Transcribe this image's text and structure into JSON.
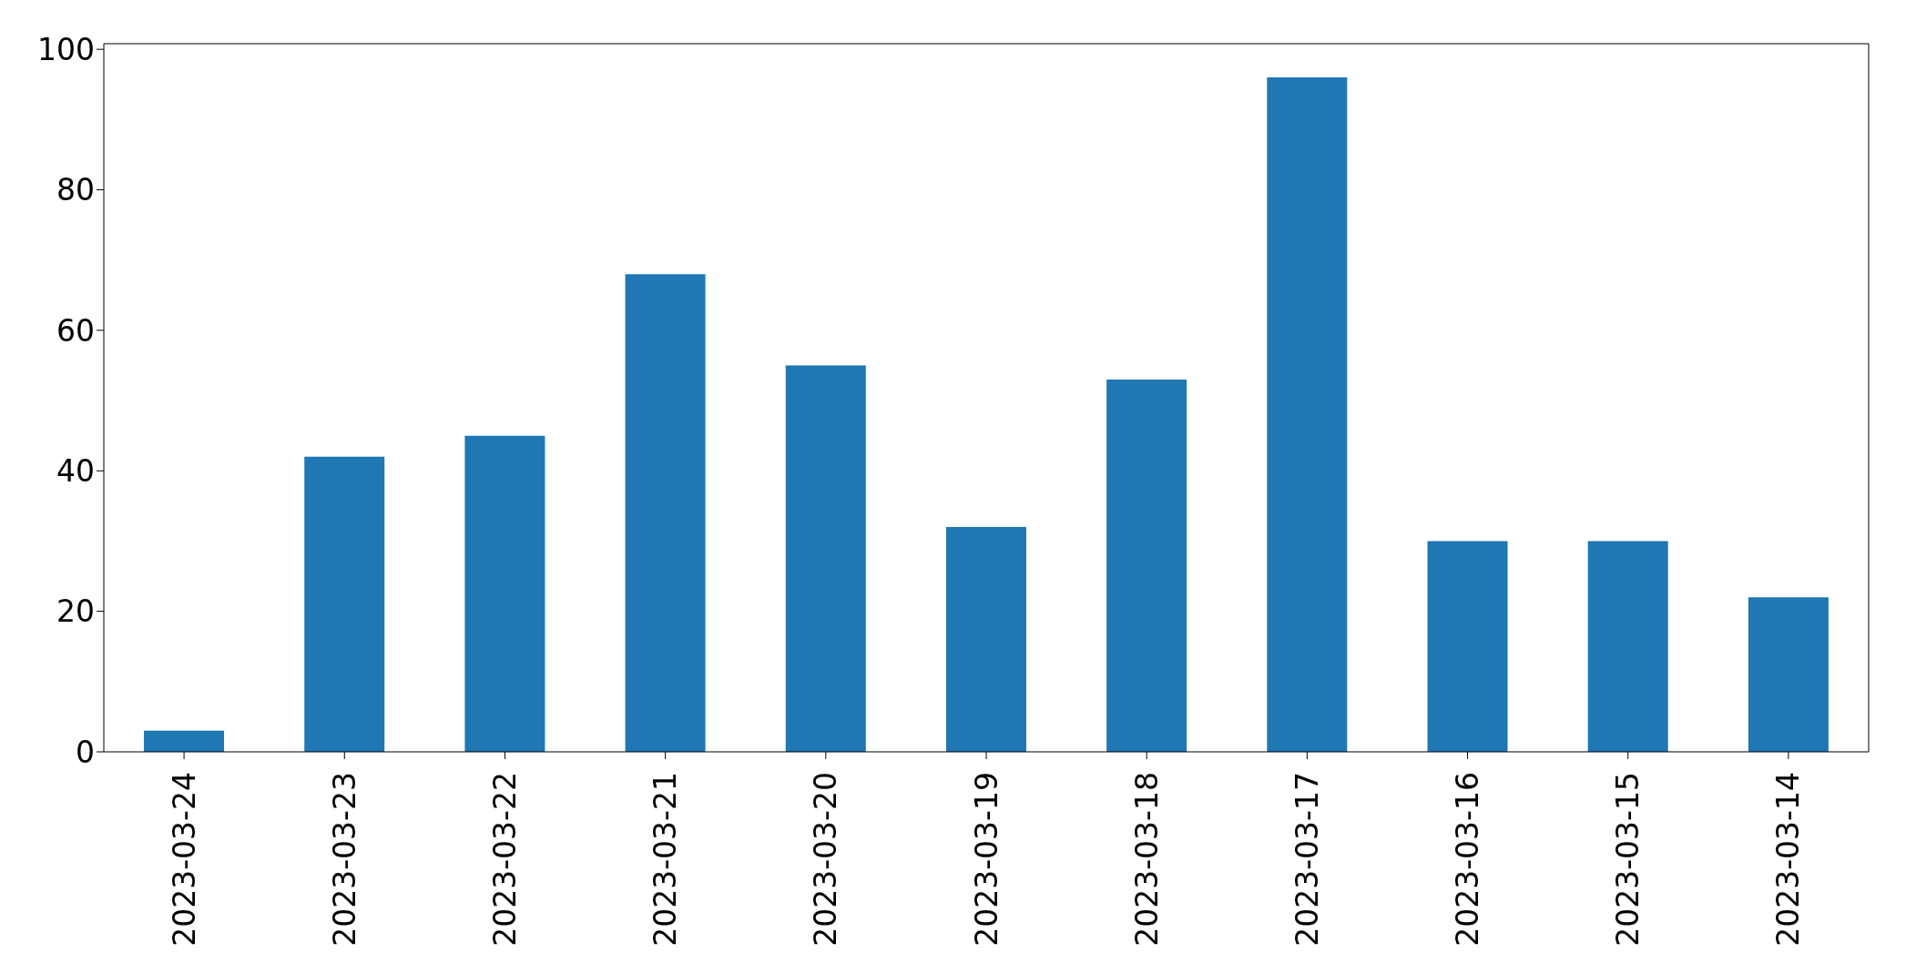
{
  "chart_data": {
    "type": "bar",
    "categories": [
      "2023-03-24",
      "2023-03-23",
      "2023-03-22",
      "2023-03-21",
      "2023-03-20",
      "2023-03-19",
      "2023-03-18",
      "2023-03-17",
      "2023-03-16",
      "2023-03-15",
      "2023-03-14"
    ],
    "values": [
      3,
      42,
      45,
      68,
      55,
      32,
      53,
      96,
      30,
      30,
      22
    ],
    "color": "#1f77b4",
    "ylim": [
      0,
      100.8
    ],
    "yticks": [
      0,
      20,
      40,
      60,
      80,
      100
    ],
    "grid": false
  }
}
